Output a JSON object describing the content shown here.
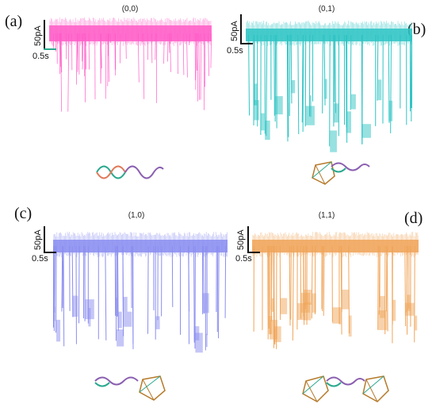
{
  "panels": [
    {
      "label": "(a)",
      "title": "(0,0)",
      "color": "#ff5cc7",
      "v_scale": "50pA",
      "t_scale": "0.5s",
      "blockade": 0.12
    },
    {
      "label": "(b)",
      "title": "(0,1)",
      "color": "#2fc4c4",
      "v_scale": "50pA",
      "t_scale": "0.5s",
      "blockade": 0.9
    },
    {
      "label": "(c)",
      "title": "(1,0)",
      "color": "#8b8ef0",
      "v_scale": "50pA",
      "t_scale": "0.5s",
      "blockade": 0.85
    },
    {
      "label": "(d)",
      "title": "(1,1)",
      "color": "#f0a55a",
      "v_scale": "50pA",
      "t_scale": "0.5s",
      "blockade": 0.8
    }
  ],
  "icons": [
    "dna-strand-icon",
    "dna-cage-icon",
    "dna-cage-icon",
    "dna-two-cages-icon"
  ]
}
